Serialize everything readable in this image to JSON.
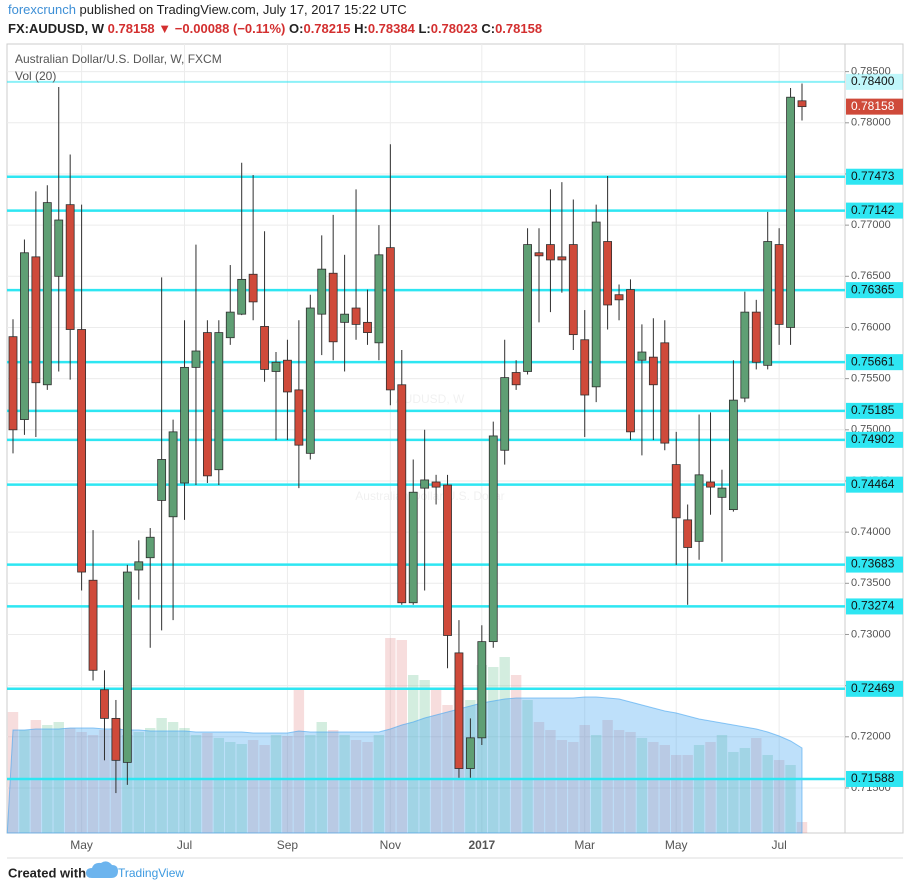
{
  "header": {
    "author": "forexcrunch",
    "published": "published on TradingView.com, July 17, 2017 15:22 UTC",
    "symbol": "FX:AUDUSD, W",
    "last": "0.78158",
    "arrow": "▼",
    "change": "−0.00088 (−0.11%)",
    "o_label": "O:",
    "o": "0.78215",
    "h_label": "H:",
    "h": "0.78384",
    "l_label": "L:",
    "l": "0.78023",
    "c_label": "C:",
    "c": "0.78158"
  },
  "footer": {
    "created": "Created with",
    "brand": "TradingView"
  },
  "chart_data": {
    "type": "candlestick",
    "title": "Australian Dollar/U.S. Dollar, W, FXCM",
    "volume_label": "Vol (20)",
    "watermark": [
      "AUDUSD, W",
      "Australian Dollar/U.S. Dollar"
    ],
    "categories": [
      null,
      null,
      null,
      null,
      null,
      null,
      "May",
      null,
      null,
      null,
      null,
      null,
      null,
      null,
      null,
      "Jul",
      null,
      null,
      null,
      null,
      null,
      null,
      null,
      null,
      "Sep",
      null,
      null,
      null,
      null,
      null,
      null,
      null,
      null,
      "Nov",
      null,
      null,
      null,
      null,
      null,
      null,
      null,
      "2017",
      null,
      null,
      null,
      null,
      null,
      null,
      null,
      null,
      "Mar",
      null,
      null,
      null,
      null,
      null,
      null,
      null,
      "May",
      null,
      null,
      null,
      null,
      null,
      null,
      null,
      null,
      "Jul",
      null,
      null
    ],
    "open": [
      0.7591,
      0.751,
      0.7669,
      0.7544,
      0.765,
      0.772,
      0.7598,
      0.7353,
      0.7246,
      0.7218,
      0.7175,
      0.7363,
      0.7375,
      0.7431,
      0.7415,
      0.7448,
      0.7561,
      0.7595,
      0.7461,
      0.759,
      0.7613,
      0.7652,
      0.7601,
      0.7557,
      0.7568,
      0.7539,
      0.7477,
      0.7613,
      0.7653,
      0.7605,
      0.7619,
      0.7605,
      0.7585,
      0.7678,
      0.7544,
      0.7331,
      0.7443,
      0.7449,
      0.7446,
      0.7282,
      0.7169,
      0.7199,
      0.7293,
      0.748,
      0.7556,
      0.7557,
      0.7673,
      0.7681,
      0.7669,
      0.7681,
      0.7588,
      0.7542,
      0.7684,
      0.7632,
      0.7637,
      0.7568,
      0.7571,
      0.7585,
      0.7466,
      0.7412,
      0.7391,
      0.7449,
      0.7434,
      0.7422,
      0.7531,
      0.7615,
      0.7563,
      0.7681,
      0.76,
      0.78215
    ],
    "high": [
      0.7608,
      0.7686,
      0.7733,
      0.7739,
      0.7835,
      0.7769,
      0.772,
      0.7402,
      0.7265,
      0.7236,
      0.7368,
      0.7392,
      0.7404,
      0.7649,
      0.751,
      0.7607,
      0.7681,
      0.7607,
      0.7607,
      0.7661,
      0.7761,
      0.7749,
      0.7694,
      0.7576,
      0.7588,
      0.7607,
      0.7632,
      0.769,
      0.771,
      0.7671,
      0.7735,
      0.7637,
      0.77,
      0.7779,
      0.7578,
      0.7471,
      0.75,
      0.7456,
      0.7456,
      0.7314,
      0.7218,
      0.7309,
      0.7508,
      0.7588,
      0.7568,
      0.7697,
      0.7697,
      0.7735,
      0.7742,
      0.7725,
      0.7617,
      0.772,
      0.7748,
      0.7642,
      0.7647,
      0.7603,
      0.7609,
      0.7607,
      0.7498,
      0.7427,
      0.7515,
      0.7517,
      0.7461,
      0.7568,
      0.7635,
      0.7627,
      0.7713,
      0.7697,
      0.7834,
      0.78384
    ],
    "low": [
      0.7477,
      0.7495,
      0.7493,
      0.7539,
      0.7557,
      0.7549,
      0.7343,
      0.7255,
      0.7177,
      0.7145,
      0.7153,
      0.7334,
      0.7287,
      0.7304,
      0.7314,
      0.7412,
      0.7446,
      0.7448,
      0.7446,
      0.7583,
      0.7612,
      0.7607,
      0.7547,
      0.749,
      0.749,
      0.7443,
      0.7471,
      0.7573,
      0.7568,
      0.7557,
      0.7588,
      0.7583,
      0.7568,
      0.7524,
      0.7329,
      0.7329,
      0.7343,
      0.7427,
      0.7267,
      0.716,
      0.716,
      0.7192,
      0.7287,
      0.7466,
      0.7539,
      0.7554,
      0.7605,
      0.7615,
      0.7634,
      0.7578,
      0.7493,
      0.7527,
      0.7598,
      0.7607,
      0.749,
      0.7475,
      0.749,
      0.748,
      0.7368,
      0.7329,
      0.7373,
      0.7417,
      0.7371,
      0.742,
      0.7527,
      0.7559,
      0.7559,
      0.7583,
      0.7583,
      0.78023
    ],
    "close": [
      0.75,
      0.7673,
      0.7546,
      0.7722,
      0.7705,
      0.7598,
      0.7361,
      0.7265,
      0.7218,
      0.7177,
      0.7361,
      0.7371,
      0.7395,
      0.7471,
      0.7498,
      0.7561,
      0.7577,
      0.7455,
      0.7595,
      0.7615,
      0.7647,
      0.7625,
      0.7559,
      0.7566,
      0.7537,
      0.7485,
      0.7619,
      0.7657,
      0.7586,
      0.7613,
      0.7603,
      0.7595,
      0.7671,
      0.7539,
      0.7331,
      0.7439,
      0.7451,
      0.7444,
      0.7299,
      0.7169,
      0.7199,
      0.7293,
      0.7494,
      0.7551,
      0.7544,
      0.7681,
      0.767,
      0.7666,
      0.7666,
      0.7593,
      0.7534,
      0.7703,
      0.7622,
      0.7627,
      0.7498,
      0.7576,
      0.7544,
      0.7487,
      0.7414,
      0.7385,
      0.7456,
      0.7444,
      0.7443,
      0.7529,
      0.7615,
      0.7566,
      0.7684,
      0.7603,
      0.7825,
      0.78158
    ],
    "volume": [
      121,
      103,
      113,
      108,
      111,
      105,
      101,
      98,
      103,
      105,
      98,
      101,
      105,
      115,
      111,
      105,
      98,
      100,
      95,
      91,
      89,
      93,
      88,
      98,
      97,
      143,
      98,
      111,
      103,
      98,
      93,
      91,
      98,
      195,
      193,
      158,
      153,
      143,
      128,
      148,
      133,
      168,
      166,
      176,
      158,
      133,
      111,
      103,
      93,
      91,
      108,
      98,
      113,
      103,
      101,
      95,
      91,
      88,
      78,
      78,
      88,
      91,
      98,
      81,
      85,
      95,
      78,
      73,
      68,
      11
    ],
    "volume_ma": [
      103,
      103,
      104,
      104,
      104,
      105,
      105,
      105,
      104,
      104,
      103,
      103,
      102,
      102,
      102,
      102,
      101,
      101,
      101,
      101,
      101,
      100,
      100,
      100,
      100,
      102,
      101,
      101,
      101,
      101,
      101,
      101,
      101,
      104,
      108,
      111,
      115,
      118,
      121,
      124,
      127,
      130,
      132,
      134,
      135,
      135,
      135,
      135,
      135,
      135,
      136,
      136,
      135,
      134,
      131,
      128,
      125,
      122,
      120,
      117,
      114,
      112,
      110,
      108,
      106,
      104,
      101,
      97,
      92,
      85
    ],
    "volume_lim": [
      0,
      200
    ],
    "ylim": [
      0.7106,
      0.7877
    ],
    "yticks": [
      {
        "value": 0.715,
        "label": "0.71500"
      },
      {
        "value": 0.72,
        "label": "0.72000"
      },
      {
        "value": 0.725,
        "label": "0.72500"
      },
      {
        "value": 0.73,
        "label": "0.73000"
      },
      {
        "value": 0.735,
        "label": "0.73500"
      },
      {
        "value": 0.74,
        "label": "0.74000"
      },
      {
        "value": 0.745,
        "label": "0.74500"
      },
      {
        "value": 0.75,
        "label": "0.75000"
      },
      {
        "value": 0.755,
        "label": "0.75500"
      },
      {
        "value": 0.76,
        "label": "0.76000"
      },
      {
        "value": 0.765,
        "label": "0.76500"
      },
      {
        "value": 0.77,
        "label": "0.77000"
      },
      {
        "value": 0.775,
        "label": "0.77500"
      },
      {
        "value": 0.78,
        "label": "0.78000"
      },
      {
        "value": 0.785,
        "label": "0.78500"
      }
    ],
    "levels": [
      {
        "value": 0.784,
        "label": "0.78400"
      },
      {
        "value": 0.77473,
        "label": "0.77473"
      },
      {
        "value": 0.77142,
        "label": "0.77142"
      },
      {
        "value": 0.76365,
        "label": "0.76365"
      },
      {
        "value": 0.75661,
        "label": "0.75661"
      },
      {
        "value": 0.75185,
        "label": "0.75185"
      },
      {
        "value": 0.74902,
        "label": "0.74902"
      },
      {
        "value": 0.74464,
        "label": "0.74464"
      },
      {
        "value": 0.73683,
        "label": "0.73683"
      },
      {
        "value": 0.73274,
        "label": "0.73274"
      },
      {
        "value": 0.72469,
        "label": "0.72469"
      },
      {
        "value": 0.71588,
        "label": "0.71588"
      }
    ],
    "grid": true,
    "up_color": "#5f9f74",
    "down_color": "#cf4a3a",
    "wick_color": "#2f2f2f",
    "level_color": "#2ee6f2",
    "volume_up_color": "rgba(96,190,140,0.28)",
    "volume_down_color": "rgba(225,120,120,0.25)",
    "volume_ma_color": "rgba(70,165,240,0.35)"
  }
}
